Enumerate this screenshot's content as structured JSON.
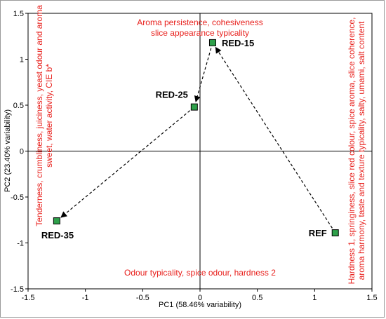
{
  "chart_data": {
    "type": "scatter",
    "xlabel": "PC1 (58.46% variability)",
    "ylabel": "PC2 (23.40% variability)",
    "xlim": [
      -1.5,
      1.5
    ],
    "ylim": [
      -1.5,
      1.5
    ],
    "x_ticks": [
      "-1.5",
      "-1",
      "-0.5",
      "0",
      "0.5",
      "1",
      "1.5"
    ],
    "y_ticks": [
      "1.5",
      "1",
      "0.5",
      "0",
      "-0.5",
      "-1",
      "-1.5"
    ],
    "x_tick_values": [
      -1.5,
      -1,
      -0.5,
      0,
      0.5,
      1,
      1.5
    ],
    "y_tick_values": [
      1.5,
      1,
      0.5,
      0,
      -0.5,
      -1,
      -1.5
    ],
    "grid": false,
    "marker_color": "#2ea04a",
    "annotation_color": "#e8211d",
    "points": [
      {
        "label": "RED-15",
        "x": 0.11,
        "y": 1.18
      },
      {
        "label": "RED-25",
        "x": -0.05,
        "y": 0.48
      },
      {
        "label": "RED-35",
        "x": -1.25,
        "y": -0.76
      },
      {
        "label": "REF",
        "x": 1.18,
        "y": -0.89
      }
    ],
    "arrows": [
      {
        "from": "RED-15",
        "to": "RED-25",
        "style": "dashed"
      },
      {
        "from": "RED-25",
        "to": "RED-35",
        "style": "dashed"
      },
      {
        "from": "REF",
        "to": "RED-15",
        "style": "dashed"
      }
    ],
    "annotations": {
      "top_line1": "Aroma persistence, cohesiveness",
      "top_line2": "slice appearance typicality",
      "bottom": "Odour typicality, spice odour, hardness 2",
      "left_line1": "Tenderness, crumbliness, juiciness, yeast odour and aroma",
      "left_line2": "sweet, water activity, CIE b*",
      "right_line1": "Hardness 1, springiness, slice red colour, spice aroma, slice coherence,",
      "right_line2": "aroma harmony, taste and texture typicality, salty, umami, salt content"
    }
  }
}
